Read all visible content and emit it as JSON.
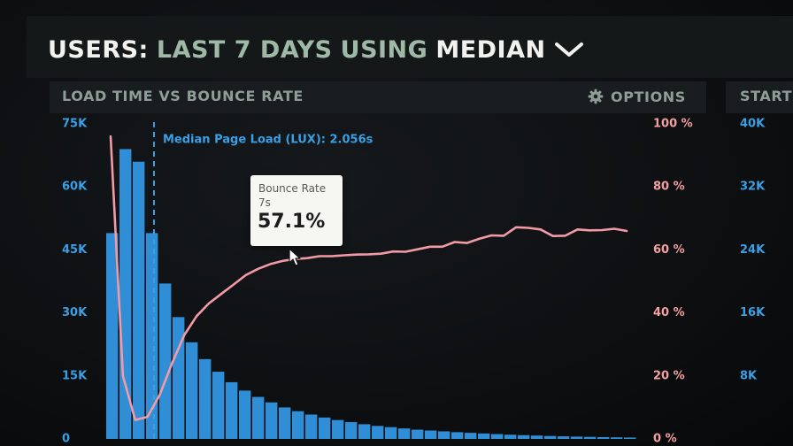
{
  "header": {
    "title_part1": "USERS:",
    "title_part2": "LAST 7 DAYS",
    "title_part3": "USING",
    "title_part4": "MEDIAN",
    "dropdown_icon": "chevron-down-icon"
  },
  "panel": {
    "title": "LOAD TIME VS BOUNCE RATE",
    "options_label": "OPTIONS",
    "options_icon": "gear-icon"
  },
  "side_panel": {
    "title": "START"
  },
  "colors": {
    "bars": "#2f8ed6",
    "left_axis": "#39a0e6",
    "right_axis": "#f3a0a0",
    "bounce_line": "#f29aa6",
    "title_white": "#f1f1ee",
    "title_green": "#9fb9a7"
  },
  "chart_data": {
    "type": "bar",
    "annotation": "Median Page Load (LUX): 2.056s",
    "median_bar_index": 4,
    "left_axis": {
      "ticks": [
        "0",
        "15K",
        "30K",
        "45K",
        "60K",
        "75K"
      ],
      "ylim": [
        0,
        75000
      ]
    },
    "right_axis": {
      "ticks": [
        "0 %",
        "20 %",
        "40 %",
        "60 %",
        "80 %",
        "100 %"
      ],
      "ylim": [
        0,
        100
      ]
    },
    "second_axis": {
      "ticks": [
        "",
        "8K",
        "16K",
        "24K",
        "32K",
        "40K"
      ]
    },
    "grid": false,
    "series": [
      {
        "kind": "bar",
        "values": [
          49000,
          69000,
          66000,
          49000,
          37000,
          29000,
          23000,
          19000,
          16000,
          13500,
          11500,
          10000,
          8700,
          7500,
          6600,
          5800,
          5100,
          4500,
          4000,
          3500,
          3100,
          2800,
          2500,
          2200,
          2000,
          1800,
          1600,
          1450,
          1300,
          1150,
          1000,
          900,
          800,
          700,
          620,
          550,
          490,
          430,
          380,
          330
        ]
      },
      {
        "kind": "line",
        "values": [
          96,
          20,
          6,
          7,
          14,
          24,
          33,
          39,
          43,
          46,
          49,
          52,
          54,
          55.5,
          56.5,
          57.1,
          57.4,
          58,
          58,
          58.3,
          58.5,
          58.6,
          58.8,
          59.5,
          59.4,
          60.2,
          61,
          61,
          62.5,
          62.2,
          63.5,
          64.6,
          64.5,
          67.2,
          67,
          66.5,
          64.4,
          64.5,
          66.5,
          66.2,
          66.3,
          66.7,
          66
        ]
      }
    ]
  },
  "tooltip": {
    "label": "Bounce Rate",
    "x": "7s",
    "value": "57.1%"
  }
}
